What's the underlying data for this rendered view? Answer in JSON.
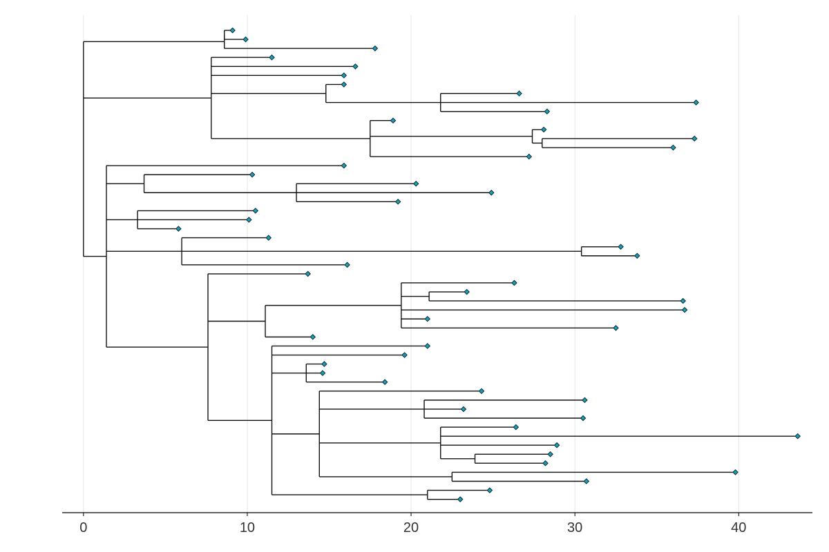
{
  "chart_data": {
    "type": "dendrogram",
    "title": "",
    "xlabel": "",
    "ylabel": "",
    "xlim": [
      -1.3,
      44.5
    ],
    "xticks": [
      0,
      10,
      20,
      30,
      40
    ],
    "xtick_labels": [
      "0",
      "10",
      "20",
      "30",
      "40"
    ],
    "grid": "vertical",
    "tip_marker": "diamond",
    "tip_color": "#1b9db3",
    "branch_color": "#111111",
    "tree": {
      "x": 0,
      "children": [
        {
          "x": 8.6,
          "children": [
            {
              "x": 8.6,
              "children": [
                {
                  "x": 9.1,
                  "children": []
                },
                {
                  "x": 9.9,
                  "children": []
                }
              ]
            },
            {
              "x": 17.8,
              "children": []
            }
          ]
        },
        {
          "x": 7.8,
          "children": [
            {
              "x": 11.5,
              "children": []
            },
            {
              "x": 16.6,
              "children": []
            },
            {
              "x": 15.9,
              "children": []
            },
            {
              "x": 14.8,
              "children": [
                {
                  "x": 15.9,
                  "children": []
                },
                {
                  "x": 21.8,
                  "children": [
                    {
                      "x": 26.6,
                      "children": []
                    },
                    {
                      "x": 37.4,
                      "children": []
                    },
                    {
                      "x": 28.3,
                      "children": []
                    }
                  ]
                }
              ]
            },
            {
              "x": 17.5,
              "children": [
                {
                  "x": 18.9,
                  "children": []
                },
                {
                  "x": 27.4,
                  "children": [
                    {
                      "x": 28.1,
                      "children": []
                    },
                    {
                      "x": 28.0,
                      "children": [
                        {
                          "x": 37.3,
                          "children": []
                        },
                        {
                          "x": 36.0,
                          "children": []
                        }
                      ]
                    }
                  ]
                },
                {
                  "x": 27.2,
                  "children": []
                }
              ]
            }
          ]
        },
        {
          "x": 1.4,
          "children": [
            {
              "x": 15.9,
              "children": []
            },
            {
              "x": 3.7,
              "children": [
                {
                  "x": 10.3,
                  "children": []
                },
                {
                  "x": 13.0,
                  "children": [
                    {
                      "x": 20.3,
                      "children": []
                    },
                    {
                      "x": 24.9,
                      "children": []
                    },
                    {
                      "x": 19.2,
                      "children": []
                    }
                  ]
                }
              ]
            },
            {
              "x": 3.3,
              "children": [
                {
                  "x": 10.5,
                  "children": []
                },
                {
                  "x": 10.1,
                  "children": []
                },
                {
                  "x": 5.8,
                  "children": []
                }
              ]
            },
            {
              "x": 6.0,
              "children": [
                {
                  "x": 11.3,
                  "children": []
                },
                {
                  "x": 30.4,
                  "children": [
                    {
                      "x": 32.8,
                      "children": []
                    },
                    {
                      "x": 33.8,
                      "children": []
                    }
                  ]
                },
                {
                  "x": 16.1,
                  "children": []
                }
              ]
            },
            {
              "x": 7.6,
              "children": [
                {
                  "x": 13.7,
                  "children": []
                },
                {
                  "x": 11.1,
                  "children": [
                    {
                      "x": 19.4,
                      "children": [
                        {
                          "x": 26.3,
                          "children": []
                        },
                        {
                          "x": 21.1,
                          "children": [
                            {
                              "x": 23.4,
                              "children": []
                            },
                            {
                              "x": 36.6,
                              "children": []
                            }
                          ]
                        },
                        {
                          "x": 36.7,
                          "children": []
                        },
                        {
                          "x": 21.0,
                          "children": []
                        },
                        {
                          "x": 32.5,
                          "children": []
                        }
                      ]
                    },
                    {
                      "x": 14.0,
                      "children": []
                    }
                  ]
                },
                {
                  "x": 11.5,
                  "children": [
                    {
                      "x": 21.0,
                      "children": []
                    },
                    {
                      "x": 19.6,
                      "children": []
                    },
                    {
                      "x": 13.6,
                      "children": [
                        {
                          "x": 14.7,
                          "children": []
                        },
                        {
                          "x": 14.6,
                          "children": []
                        },
                        {
                          "x": 18.4,
                          "children": []
                        }
                      ]
                    },
                    {
                      "x": 14.4,
                      "children": [
                        {
                          "x": 24.3,
                          "children": []
                        },
                        {
                          "x": 20.8,
                          "children": [
                            {
                              "x": 30.6,
                              "children": []
                            },
                            {
                              "x": 23.2,
                              "children": []
                            },
                            {
                              "x": 30.5,
                              "children": []
                            }
                          ]
                        },
                        {
                          "x": 21.8,
                          "children": [
                            {
                              "x": 26.4,
                              "children": []
                            },
                            {
                              "x": 43.6,
                              "children": []
                            },
                            {
                              "x": 28.9,
                              "children": []
                            },
                            {
                              "x": 23.9,
                              "children": [
                                {
                                  "x": 28.5,
                                  "children": []
                                },
                                {
                                  "x": 28.2,
                                  "children": []
                                }
                              ]
                            }
                          ]
                        },
                        {
                          "x": 22.5,
                          "children": [
                            {
                              "x": 39.8,
                              "children": []
                            },
                            {
                              "x": 30.7,
                              "children": []
                            }
                          ]
                        }
                      ]
                    },
                    {
                      "x": 21.0,
                      "children": [
                        {
                          "x": 24.8,
                          "children": []
                        },
                        {
                          "x": 23.0,
                          "children": []
                        }
                      ]
                    }
                  ]
                }
              ]
            }
          ]
        }
      ]
    }
  }
}
